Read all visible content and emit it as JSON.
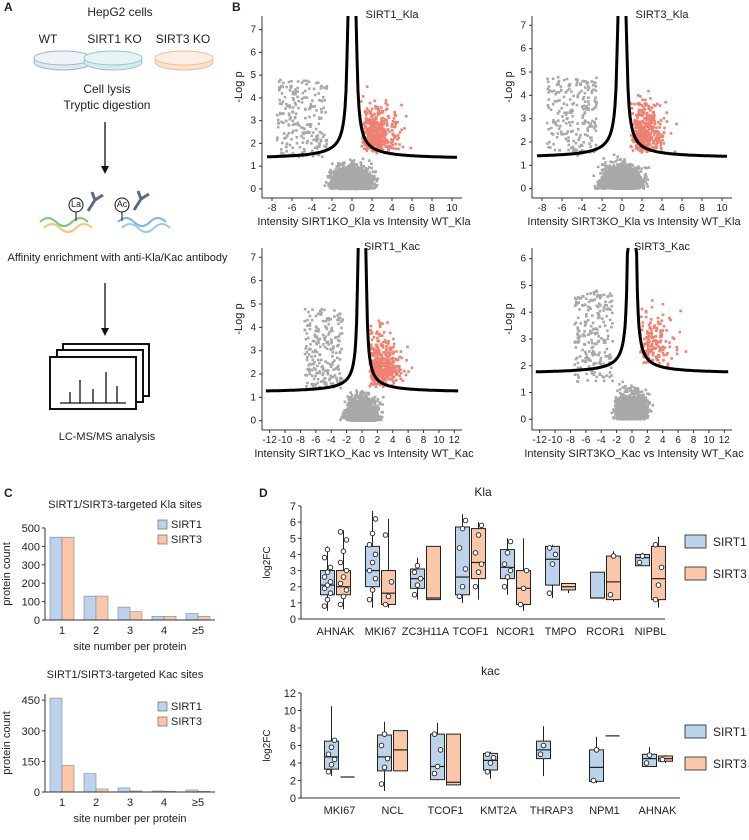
{
  "panel_labels": {
    "a": "A",
    "b": "B",
    "c": "C",
    "d": "D"
  },
  "workflow": {
    "title": "HepG2 cells",
    "groups": [
      "WT",
      "SIRT1 KO",
      "SIRT3 KO"
    ],
    "step1": "Cell lysis",
    "step2": "Tryptic digestion",
    "antibody_la": "La",
    "antibody_ac": "Ac",
    "step3": "Affinity enrichment with anti-Kla/Kac antibody",
    "step4": "LC-MS/MS analysis",
    "colors": {
      "wt": "#dfe8f3",
      "sirt1": "#d4ecec",
      "sirt3": "#fbe1cc"
    }
  },
  "chart_data": [
    {
      "type": "scatter",
      "subtype": "volcano",
      "title": "SIRT1_Kla",
      "xlabel": "Intensity SIRT1KO_Kla vs Intensity WT_Kla",
      "ylabel": "-Log p",
      "xticks": [
        -8,
        -6,
        -4,
        -2,
        0,
        2,
        4,
        6,
        8,
        10
      ],
      "yticks": [
        0,
        1,
        2,
        3,
        4,
        5,
        6,
        7
      ],
      "xlim": [
        -9,
        11
      ],
      "ylim": [
        -0.4,
        7.6
      ],
      "threshold_y": 1.3,
      "vertical_asymptotes": [
        -0.3,
        0.3
      ],
      "significant_color": "#f08070",
      "other_color": "#a8a8a8"
    },
    {
      "type": "scatter",
      "subtype": "volcano",
      "title": "SIRT3_Kla",
      "xlabel": "Intensity SIRT3KO_Kla vs Intensity WT_Kla",
      "ylabel": "-Log p",
      "xticks": [
        -8,
        -6,
        -4,
        -2,
        0,
        2,
        4,
        6,
        8,
        10
      ],
      "yticks": [
        0,
        1,
        2,
        3,
        4,
        5,
        6,
        7
      ],
      "xlim": [
        -9,
        11
      ],
      "ylim": [
        -0.4,
        7.4
      ],
      "threshold_y": 1.3,
      "vertical_asymptotes": [
        -0.3,
        0.3
      ],
      "significant_color": "#f08070",
      "other_color": "#a8a8a8"
    },
    {
      "type": "scatter",
      "subtype": "volcano",
      "title": "SIRT1_Kac",
      "xlabel": "Intensity SIRT1KO_Kac vs Intensity WT_Kac",
      "ylabel": "-Log p",
      "xticks": [
        -12,
        -10,
        -8,
        -6,
        -4,
        -2,
        0,
        2,
        4,
        6,
        8,
        10,
        12
      ],
      "yticks": [
        0,
        1,
        2,
        3,
        4,
        5,
        6,
        7
      ],
      "xlim": [
        -13,
        13
      ],
      "ylim": [
        -0.4,
        7.4
      ],
      "threshold_y": 1.2,
      "vertical_asymptotes": [
        -0.4,
        0.4
      ],
      "significant_color": "#f08070",
      "other_color": "#a8a8a8"
    },
    {
      "type": "scatter",
      "subtype": "volcano",
      "title": "SIRT3_Kac",
      "xlabel": "Intensity SIRT3KO_Kac vs Intensity WT_Kac",
      "ylabel": "-Log p",
      "xticks": [
        -12,
        -10,
        -8,
        -6,
        -4,
        -2,
        0,
        2,
        4,
        6,
        8,
        10,
        12
      ],
      "yticks": [
        0,
        1,
        2,
        3,
        4,
        5,
        6
      ],
      "xlim": [
        -13,
        13
      ],
      "ylim": [
        -0.4,
        6.4
      ],
      "threshold_y": 1.7,
      "vertical_asymptotes": [
        -0.4,
        0.4
      ],
      "significant_color": "#f08070",
      "other_color": "#a8a8a8"
    },
    {
      "type": "bar",
      "title": "SIRT1/SIRT3-targeted Kla sites",
      "xlabel": "site number per protein",
      "ylabel": "protein count",
      "categories": [
        "1",
        "2",
        "3",
        "4",
        "≥5"
      ],
      "yticks": [
        0,
        100,
        200,
        300,
        400,
        500
      ],
      "ylim": [
        0,
        500
      ],
      "series": [
        {
          "name": "SIRT1",
          "values": [
            450,
            130,
            70,
            20,
            35
          ],
          "color": "#bcd3eb"
        },
        {
          "name": "SIRT3",
          "values": [
            450,
            130,
            45,
            20,
            20
          ],
          "color": "#fac8a8"
        }
      ]
    },
    {
      "type": "bar",
      "title": "SIRT1/SIRT3-targeted Kac sites",
      "xlabel": "site number per protein",
      "ylabel": "protein count",
      "categories": [
        "1",
        "2",
        "3",
        "4",
        "≥5"
      ],
      "yticks": [
        0,
        150,
        300,
        450
      ],
      "ylim": [
        0,
        480
      ],
      "series": [
        {
          "name": "SIRT1",
          "values": [
            460,
            90,
            20,
            5,
            10
          ],
          "color": "#bcd3eb"
        },
        {
          "name": "SIRT3",
          "values": [
            130,
            15,
            5,
            3,
            3
          ],
          "color": "#fac8a8"
        }
      ]
    },
    {
      "type": "box",
      "title": "Kla",
      "ylabel": "log2FC",
      "yticks": [
        0,
        1,
        2,
        3,
        4,
        5,
        6,
        7
      ],
      "ylim": [
        0,
        7
      ],
      "categories": [
        "AHNAK",
        "MKI67",
        "ZC3H11A",
        "TCOF1",
        "NCOR1",
        "TMPO",
        "RCOR1",
        "NIPBL"
      ],
      "series": [
        {
          "name": "SIRT1",
          "color": "#bcd3eb",
          "boxes": [
            {
              "min": 0.5,
              "q1": 1.5,
              "median": 2.1,
              "q3": 3.0,
              "max": 4.5,
              "points": [
                0.8,
                1.2,
                1.6,
                1.9,
                2.1,
                2.3,
                2.6,
                2.9,
                3.2,
                3.8,
                4.3
              ]
            },
            {
              "min": 0.7,
              "q1": 2.0,
              "median": 3.0,
              "q3": 4.5,
              "max": 6.7,
              "points": [
                1.2,
                1.8,
                2.5,
                3.0,
                3.5,
                4.0,
                4.6,
                5.3,
                6.2
              ]
            },
            {
              "min": 1.2,
              "q1": 1.9,
              "median": 2.5,
              "q3": 3.1,
              "max": 3.8,
              "points": [
                1.5,
                2.1,
                2.5,
                2.9,
                3.3
              ]
            },
            {
              "min": 1.0,
              "q1": 1.5,
              "median": 2.6,
              "q3": 5.7,
              "max": 6.5,
              "points": [
                1.4,
                2.0,
                3.1,
                4.4,
                5.6,
                6.1
              ]
            },
            {
              "min": 1.5,
              "q1": 2.5,
              "median": 3.2,
              "q3": 4.3,
              "max": 5.0,
              "points": [
                2.0,
                2.6,
                3.0,
                3.4,
                4.1,
                4.8
              ]
            },
            {
              "min": 1.3,
              "q1": 2.1,
              "median": 3.7,
              "q3": 4.5,
              "max": 4.6,
              "points": [
                1.6,
                3.4,
                4.0,
                4.4
              ]
            },
            {
              "min": 1.3,
              "q1": 1.3,
              "median": 1.3,
              "q3": 2.9,
              "max": 2.9,
              "points": []
            },
            {
              "min": 3.3,
              "q1": 3.3,
              "median": 3.8,
              "q3": 4.0,
              "max": 4.1,
              "points": [
                3.5,
                3.9
              ]
            }
          ]
        },
        {
          "name": "SIRT3",
          "color": "#fac8a8",
          "boxes": [
            {
              "min": 0.6,
              "q1": 1.5,
              "median": 2.0,
              "q3": 3.0,
              "max": 5.5,
              "points": [
                0.9,
                1.4,
                1.8,
                2.2,
                2.6,
                3.0,
                3.5,
                4.2,
                4.9,
                5.4
              ]
            },
            {
              "min": 0.7,
              "q1": 0.9,
              "median": 1.6,
              "q3": 3.0,
              "max": 6.2,
              "points": [
                0.9,
                1.4,
                2.3,
                5.2
              ]
            },
            {
              "min": 1.2,
              "q1": 1.2,
              "median": 1.3,
              "q3": 4.5,
              "max": 4.5,
              "points": []
            },
            {
              "min": 1.2,
              "q1": 2.5,
              "median": 3.5,
              "q3": 5.6,
              "max": 6.0,
              "points": [
                2.0,
                2.9,
                3.4,
                4.1,
                5.2,
                5.8
              ]
            },
            {
              "min": 0.5,
              "q1": 0.9,
              "median": 1.9,
              "q3": 3.0,
              "max": 5.0,
              "points": [
                0.9,
                1.9,
                3.0
              ]
            },
            {
              "min": 1.6,
              "q1": 1.8,
              "median": 2.0,
              "q3": 2.2,
              "max": 2.2,
              "points": []
            },
            {
              "min": 1.1,
              "q1": 1.2,
              "median": 2.3,
              "q3": 3.9,
              "max": 4.2,
              "points": [
                1.5,
                3.9
              ]
            },
            {
              "min": 0.7,
              "q1": 1.2,
              "median": 2.5,
              "q3": 4.5,
              "max": 5.1,
              "points": [
                1.2,
                2.1,
                3.2,
                4.6
              ]
            }
          ]
        }
      ]
    },
    {
      "type": "box",
      "title": "kac",
      "ylabel": "log2FC",
      "yticks": [
        0,
        2,
        4,
        6,
        8,
        10,
        12
      ],
      "ylim": [
        0,
        12
      ],
      "categories": [
        "MKI67",
        "NCL",
        "TCOF1",
        "KMT2A",
        "THRAP3",
        "NPM1",
        "AHNAK"
      ],
      "series": [
        {
          "name": "SIRT1",
          "color": "#bcd3eb",
          "boxes": [
            {
              "min": 2.5,
              "q1": 3.3,
              "median": 4.7,
              "q3": 6.5,
              "max": 10.5,
              "points": [
                3.0,
                3.8,
                4.4,
                5.0,
                5.8,
                6.6
              ]
            },
            {
              "min": 0.8,
              "q1": 3.1,
              "median": 4.7,
              "q3": 7.2,
              "max": 8.7,
              "points": [
                1.6,
                3.5,
                4.5,
                6.0,
                7.3
              ]
            },
            {
              "min": 2.0,
              "q1": 2.1,
              "median": 3.6,
              "q3": 7.3,
              "max": 8.6,
              "points": [
                2.8,
                3.6,
                5.5,
                7.3
              ]
            },
            {
              "min": 2.2,
              "q1": 3.2,
              "median": 4.3,
              "q3": 5.1,
              "max": 5.3,
              "points": [
                3.0,
                4.0,
                4.6,
                5.0
              ]
            },
            {
              "min": 2.5,
              "q1": 4.5,
              "median": 5.5,
              "q3": 6.5,
              "max": 8.2,
              "points": [
                5.0,
                6.0
              ]
            },
            {
              "min": 1.7,
              "q1": 1.9,
              "median": 3.5,
              "q3": 5.5,
              "max": 7.0,
              "points": [
                2.0,
                5.5
              ]
            },
            {
              "min": 3.6,
              "q1": 3.6,
              "median": 4.5,
              "q3": 5.0,
              "max": 5.8,
              "points": [
                4.0,
                4.9
              ]
            }
          ]
        },
        {
          "name": "SIRT3",
          "color": "#fac8a8",
          "boxes": [
            {
              "min": 2.4,
              "q1": 2.4,
              "median": 2.4,
              "q3": 2.4,
              "max": 2.4,
              "points": []
            },
            {
              "min": 3.1,
              "q1": 3.1,
              "median": 5.5,
              "q3": 7.7,
              "max": 7.7,
              "points": []
            },
            {
              "min": 1.5,
              "q1": 1.5,
              "median": 1.8,
              "q3": 7.3,
              "max": 7.3,
              "points": []
            },
            null,
            null,
            {
              "min": 7.1,
              "q1": 7.1,
              "median": 7.1,
              "q3": 7.1,
              "max": 7.1,
              "points": []
            },
            {
              "min": 4.0,
              "q1": 4.2,
              "median": 4.5,
              "q3": 4.8,
              "max": 4.9,
              "points": [
                4.4
              ]
            }
          ]
        }
      ]
    }
  ]
}
